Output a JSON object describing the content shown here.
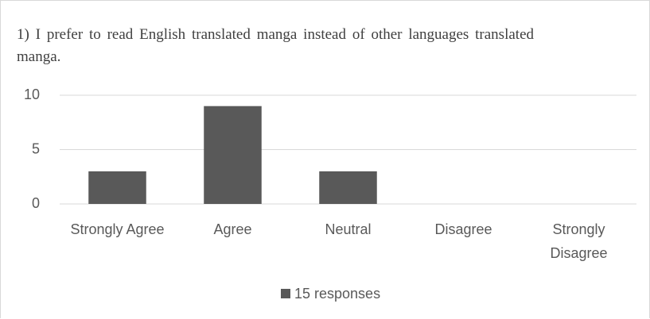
{
  "chart_data": {
    "type": "bar",
    "title": "1) I prefer to read English translated manga instead of other languages translated manga.",
    "categories": [
      "Strongly Agree",
      "Agree",
      "Neutral",
      "Disagree",
      "Strongly Disagree"
    ],
    "series": [
      {
        "name": "15 responses",
        "color": "#595959",
        "values": [
          3,
          9,
          3,
          0,
          0
        ]
      }
    ],
    "ylim": [
      0,
      10
    ],
    "yticks": [
      0,
      5,
      10
    ],
    "grid": true,
    "legend": "bottom"
  }
}
